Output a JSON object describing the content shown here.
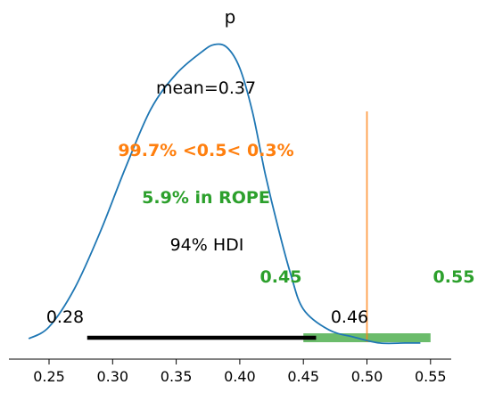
{
  "chart_data": {
    "type": "area",
    "title": "p",
    "xlabel": "",
    "ylabel": "",
    "xlim": [
      0.235,
      0.555
    ],
    "ylim": [
      0,
      1
    ],
    "x_ticks": [
      0.25,
      0.3,
      0.35,
      0.4,
      0.45,
      0.5,
      0.55
    ],
    "x_tick_labels": [
      "0.25",
      "0.30",
      "0.35",
      "0.40",
      "0.45",
      "0.50",
      "0.55"
    ],
    "grid": false,
    "series": [
      {
        "color": "#1f77b4",
        "x": [
          0.234,
          0.25,
          0.27,
          0.29,
          0.31,
          0.33,
          0.35,
          0.37,
          0.38,
          0.39,
          0.4,
          0.41,
          0.42,
          0.43,
          0.44,
          0.45,
          0.47,
          0.49,
          0.51,
          0.53,
          0.542
        ],
        "y": [
          0.0,
          0.04,
          0.17,
          0.36,
          0.58,
          0.78,
          0.9,
          0.975,
          1.0,
          0.99,
          0.92,
          0.77,
          0.56,
          0.38,
          0.22,
          0.1,
          0.03,
          0.005,
          -0.015,
          -0.015,
          -0.015
        ]
      }
    ],
    "point_estimate": {
      "label": "mean=0.37",
      "value": 0.37
    },
    "reference": {
      "value": 0.5,
      "color": "#ff7f0e",
      "label": "99.7% <0.5< 0.3%"
    },
    "rope": {
      "low": 0.45,
      "high": 0.55,
      "color": "#2ca02c",
      "label": "5.9% in ROPE",
      "low_label": "0.45",
      "high_label": "0.55"
    },
    "hdi": {
      "label": "94% HDI",
      "low": 0.28,
      "high": 0.46,
      "low_label": "0.28",
      "high_label": "0.46",
      "color": "#000000"
    }
  }
}
